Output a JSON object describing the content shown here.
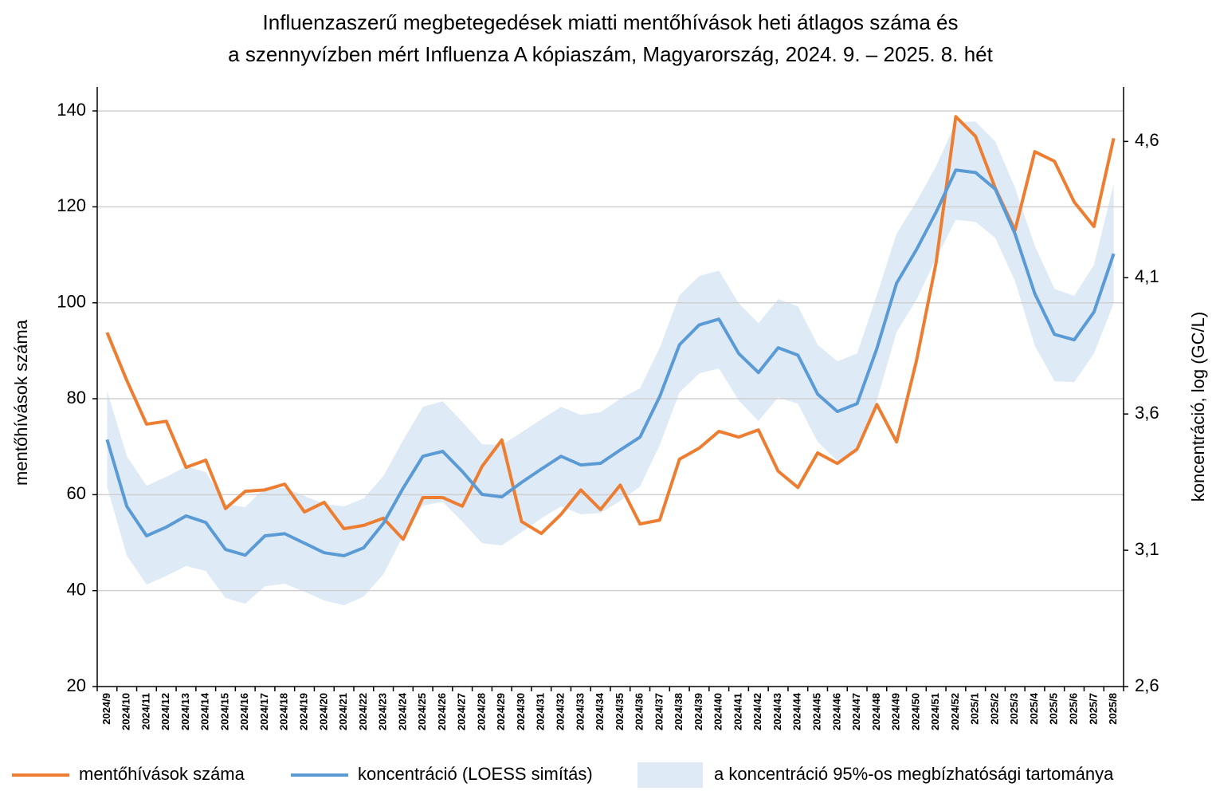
{
  "chart_data": {
    "type": "line",
    "title": [
      "Influenzaszerű megbetegedések miatti mentőhívások heti átlagos száma és",
      "a szennyvízben mért Influenza A kópiaszám, Magyarország, 2024. 9. – 2025. 8. hét"
    ],
    "y_label": "mentőhívások száma",
    "y2_label": "koncentráció, log (GC/L)",
    "categories": [
      "2024/9",
      "2024/10",
      "2024/11",
      "2024/12",
      "2024/13",
      "2024/14",
      "2024/15",
      "2024/16",
      "2024/17",
      "2024/18",
      "2024/19",
      "2024/20",
      "2024/21",
      "2024/22",
      "2024/23",
      "2024/24",
      "2024/25",
      "2024/26",
      "2024/27",
      "2024/28",
      "2024/29",
      "2024/30",
      "2024/31",
      "2024/32",
      "2024/33",
      "2024/34",
      "2024/35",
      "2024/36",
      "2024/37",
      "2024/38",
      "2024/39",
      "2024/40",
      "2024/41",
      "2024/42",
      "2024/43",
      "2024/44",
      "2024/45",
      "2024/46",
      "2024/47",
      "2024/48",
      "2024/49",
      "2024/50",
      "2024/51",
      "2024/52",
      "2025/1",
      "2025/2",
      "2025/3",
      "2025/4",
      "2025/5",
      "2025/6",
      "2025/7",
      "2025/8"
    ],
    "ylim": [
      20,
      145
    ],
    "yticks": [
      20,
      40,
      60,
      80,
      100,
      120,
      140
    ],
    "y2lim": [
      2.6,
      4.8
    ],
    "y2ticks": [
      {
        "value": 2.6,
        "label": "2,6"
      },
      {
        "value": 3.1,
        "label": "3,1"
      },
      {
        "value": 3.6,
        "label": "3,6"
      },
      {
        "value": 4.1,
        "label": "4,1"
      },
      {
        "value": 4.6,
        "label": "4,6"
      }
    ],
    "grid": true,
    "series": [
      {
        "name": "mentőhívások száma",
        "color": "#ed7d31",
        "axis": "y",
        "values": [
          93.8,
          83.8,
          74.7,
          75.3,
          65.7,
          67.2,
          57.1,
          60.7,
          61.0,
          62.2,
          56.4,
          58.4,
          52.9,
          53.6,
          55.1,
          50.7,
          59.4,
          59.4,
          57.6,
          65.9,
          71.4,
          54.4,
          51.9,
          55.9,
          61.0,
          56.9,
          62.0,
          53.9,
          54.7,
          67.4,
          69.7,
          73.2,
          72.0,
          73.5,
          64.9,
          61.5,
          68.7,
          66.5,
          69.5,
          78.8,
          71.0,
          87.8,
          108.3,
          138.8,
          134.7,
          123.9,
          115.1,
          131.5,
          129.5,
          121.0,
          115.9,
          134.3
        ]
      },
      {
        "name": "koncentráció (LOESS simítás)",
        "color": "#5b9bd5",
        "axis": "y2",
        "values": [
          3.506,
          3.261,
          3.153,
          3.185,
          3.226,
          3.202,
          3.103,
          3.082,
          3.153,
          3.161,
          3.126,
          3.091,
          3.08,
          3.109,
          3.199,
          3.328,
          3.445,
          3.463,
          3.389,
          3.305,
          3.296,
          3.349,
          3.398,
          3.445,
          3.413,
          3.419,
          3.468,
          3.515,
          3.664,
          3.854,
          3.927,
          3.948,
          3.822,
          3.752,
          3.843,
          3.816,
          3.673,
          3.609,
          3.638,
          3.84,
          4.08,
          4.202,
          4.34,
          4.495,
          4.486,
          4.425,
          4.261,
          4.042,
          3.892,
          3.872,
          3.974,
          4.188
        ]
      },
      {
        "name": "a koncentráció 95%-os megbízhatósági tartománya",
        "color": "#deeaf6",
        "axis": "y2",
        "lower": [
          3.334,
          3.08,
          2.974,
          3.006,
          3.042,
          3.024,
          2.925,
          2.904,
          2.968,
          2.977,
          2.948,
          2.916,
          2.898,
          2.93,
          3.012,
          3.153,
          3.264,
          3.278,
          3.205,
          3.126,
          3.118,
          3.167,
          3.217,
          3.261,
          3.232,
          3.237,
          3.281,
          3.334,
          3.486,
          3.679,
          3.749,
          3.767,
          3.65,
          3.574,
          3.661,
          3.638,
          3.498,
          3.427,
          3.457,
          3.65,
          3.901,
          4.018,
          4.17,
          4.313,
          4.305,
          4.246,
          4.088,
          3.851,
          3.72,
          3.717,
          3.822,
          4.006
        ],
        "upper": [
          3.685,
          3.445,
          3.337,
          3.369,
          3.407,
          3.387,
          3.27,
          3.258,
          3.331,
          3.328,
          3.299,
          3.27,
          3.261,
          3.29,
          3.372,
          3.504,
          3.626,
          3.647,
          3.571,
          3.489,
          3.486,
          3.533,
          3.58,
          3.626,
          3.597,
          3.606,
          3.656,
          3.694,
          3.843,
          4.036,
          4.106,
          4.126,
          4.006,
          3.933,
          4.021,
          3.995,
          3.854,
          3.793,
          3.822,
          4.036,
          4.261,
          4.378,
          4.509,
          4.67,
          4.673,
          4.6,
          4.43,
          4.217,
          4.059,
          4.033,
          4.147,
          4.445
        ]
      }
    ]
  }
}
